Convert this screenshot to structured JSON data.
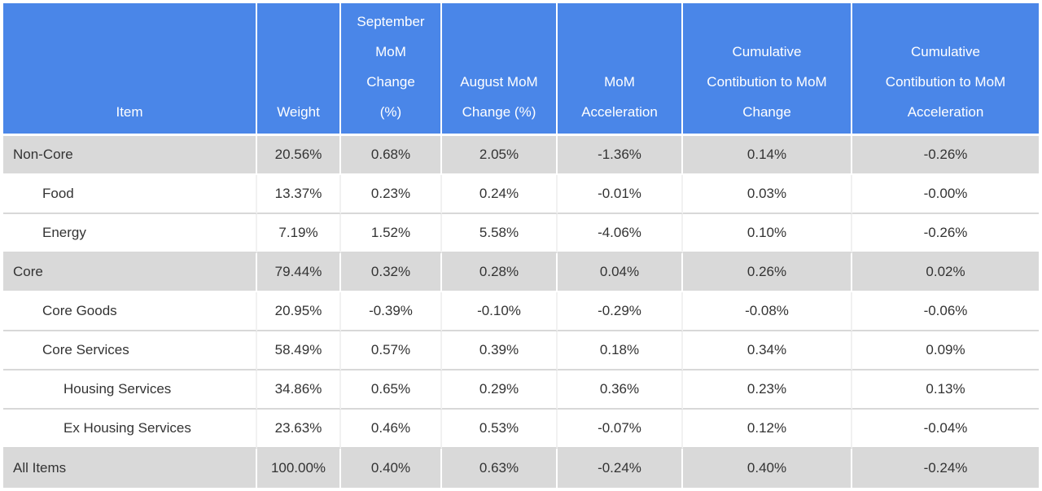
{
  "colors": {
    "header_bg": "#4a86e8",
    "header_text": "#ffffff",
    "shaded_row_bg": "#d9d9d9",
    "plain_row_bg": "#ffffff",
    "body_text": "#333333"
  },
  "chart_data": {
    "type": "table",
    "title": "",
    "columns": [
      "Item",
      "Weight",
      "September\nMoM\nChange\n(%)",
      "August MoM\nChange (%)",
      "MoM\nAcceleration",
      "Cumulative\nContibution to MoM\nChange",
      "Cumulative\nContibution to MoM\nAcceleration"
    ],
    "rows": [
      {
        "item": "Non-Core",
        "indent": 0,
        "shaded": true,
        "values": [
          "20.56%",
          "0.68%",
          "2.05%",
          "-1.36%",
          "0.14%",
          "-0.26%"
        ]
      },
      {
        "item": "Food",
        "indent": 1,
        "shaded": false,
        "values": [
          "13.37%",
          "0.23%",
          "0.24%",
          "-0.01%",
          "0.03%",
          "-0.00%"
        ]
      },
      {
        "item": "Energy",
        "indent": 1,
        "shaded": false,
        "values": [
          "7.19%",
          "1.52%",
          "5.58%",
          "-4.06%",
          "0.10%",
          "-0.26%"
        ]
      },
      {
        "item": "Core",
        "indent": 0,
        "shaded": true,
        "values": [
          "79.44%",
          "0.32%",
          "0.28%",
          "0.04%",
          "0.26%",
          "0.02%"
        ]
      },
      {
        "item": "Core Goods",
        "indent": 1,
        "shaded": false,
        "values": [
          "20.95%",
          "-0.39%",
          "-0.10%",
          "-0.29%",
          "-0.08%",
          "-0.06%"
        ]
      },
      {
        "item": "Core Services",
        "indent": 1,
        "shaded": false,
        "values": [
          "58.49%",
          "0.57%",
          "0.39%",
          "0.18%",
          "0.34%",
          "0.09%"
        ]
      },
      {
        "item": "Housing Services",
        "indent": 2,
        "shaded": false,
        "values": [
          "34.86%",
          "0.65%",
          "0.29%",
          "0.36%",
          "0.23%",
          "0.13%"
        ]
      },
      {
        "item": "Ex Housing Services",
        "indent": 2,
        "shaded": false,
        "values": [
          "23.63%",
          "0.46%",
          "0.53%",
          "-0.07%",
          "0.12%",
          "-0.04%"
        ]
      },
      {
        "item": "All Items",
        "indent": 0,
        "shaded": true,
        "values": [
          "100.00%",
          "0.40%",
          "0.63%",
          "-0.24%",
          "0.40%",
          "-0.24%"
        ]
      }
    ]
  }
}
